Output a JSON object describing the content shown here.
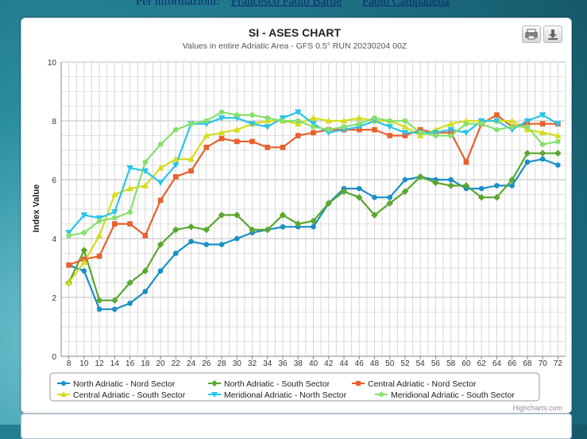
{
  "header": {
    "label": "Per informazioni:",
    "links": [
      "Francesco Paolo Barile",
      "Fabio Campanella"
    ]
  },
  "credits": "Highcharts.com",
  "toolbar": {
    "print_icon": "printer-icon",
    "export_icon": "download-icon"
  },
  "colors": {
    "north_nord": "#1a8fc6",
    "north_south": "#5aa72e",
    "central_nord": "#e8602c",
    "central_south": "#d4dc1c",
    "meridional_north": "#28c4ea",
    "meridional_south": "#86e06c"
  },
  "chart_data": {
    "type": "line",
    "title": "SI - ASES CHART",
    "subtitle": "Values in entire Adriatic Area - GFS 0.5° RUN 20230204 00Z",
    "xlabel": "",
    "ylabel": "Index Value",
    "ylim": [
      0,
      10
    ],
    "yticks": [
      0,
      2,
      4,
      6,
      8,
      10
    ],
    "grid": true,
    "legend_position": "bottom",
    "x": [
      8,
      10,
      12,
      14,
      16,
      18,
      20,
      22,
      24,
      26,
      28,
      30,
      32,
      34,
      36,
      38,
      40,
      42,
      44,
      46,
      48,
      50,
      52,
      54,
      56,
      58,
      60,
      62,
      64,
      66,
      68,
      70,
      72
    ],
    "series": [
      {
        "name": "North Adriatic - Nord Sector",
        "marker": "circle",
        "values": [
          3.1,
          2.9,
          1.6,
          1.6,
          1.8,
          2.2,
          2.9,
          3.5,
          3.9,
          3.8,
          3.8,
          4.0,
          4.2,
          4.3,
          4.4,
          4.4,
          4.4,
          5.2,
          5.7,
          5.7,
          5.4,
          5.4,
          6.0,
          6.1,
          6.0,
          6.0,
          5.7,
          5.7,
          5.8,
          5.8,
          6.6,
          6.7,
          6.5
        ]
      },
      {
        "name": "North Adriatic - South Sector",
        "marker": "diamond",
        "values": [
          2.5,
          3.6,
          1.9,
          1.9,
          2.5,
          2.9,
          3.8,
          4.3,
          4.4,
          4.3,
          4.8,
          4.8,
          4.3,
          4.3,
          4.8,
          4.5,
          4.6,
          5.2,
          5.6,
          5.4,
          4.8,
          5.2,
          5.6,
          6.1,
          5.9,
          5.8,
          5.8,
          5.4,
          5.4,
          6.0,
          6.9,
          6.9,
          6.9
        ]
      },
      {
        "name": "Central Adriatic - Nord Sector",
        "marker": "square",
        "values": [
          3.1,
          3.3,
          3.4,
          4.5,
          4.5,
          4.1,
          5.3,
          6.1,
          6.3,
          7.1,
          7.4,
          7.3,
          7.3,
          7.1,
          7.1,
          7.5,
          7.6,
          7.7,
          7.7,
          7.7,
          7.7,
          7.5,
          7.5,
          7.7,
          7.6,
          7.6,
          6.6,
          7.9,
          8.2,
          7.8,
          7.9,
          7.9,
          7.9
        ]
      },
      {
        "name": "Central Adriatic - South Sector",
        "marker": "triangle",
        "values": [
          2.5,
          3.2,
          4.1,
          5.5,
          5.7,
          5.8,
          6.4,
          6.7,
          6.7,
          7.5,
          7.6,
          7.7,
          7.9,
          8.0,
          8.0,
          7.9,
          8.1,
          8.0,
          8.0,
          8.1,
          8.0,
          8.0,
          7.8,
          7.5,
          7.7,
          7.9,
          8.0,
          8.0,
          8.0,
          8.0,
          7.7,
          7.6,
          7.5
        ]
      },
      {
        "name": "Meridional Adriatic - North Sector",
        "marker": "triangle-down",
        "values": [
          4.2,
          4.8,
          4.7,
          4.9,
          6.4,
          6.3,
          5.9,
          6.5,
          7.9,
          7.9,
          8.1,
          8.1,
          7.9,
          7.8,
          8.1,
          8.3,
          7.9,
          7.6,
          7.7,
          7.8,
          8.0,
          7.8,
          7.6,
          7.6,
          7.6,
          7.7,
          7.6,
          8.0,
          8.0,
          7.7,
          8.0,
          8.2,
          7.9
        ]
      },
      {
        "name": "Meridional Adriatic - South Sector",
        "marker": "circle",
        "values": [
          4.1,
          4.2,
          4.6,
          4.7,
          4.9,
          6.6,
          7.2,
          7.7,
          7.9,
          8.0,
          8.3,
          8.2,
          8.2,
          8.1,
          8.0,
          8.0,
          7.8,
          7.7,
          7.8,
          7.9,
          8.1,
          8.0,
          8.0,
          7.6,
          7.5,
          7.5,
          7.9,
          7.9,
          7.7,
          7.8,
          7.8,
          7.2,
          7.3
        ]
      }
    ]
  }
}
